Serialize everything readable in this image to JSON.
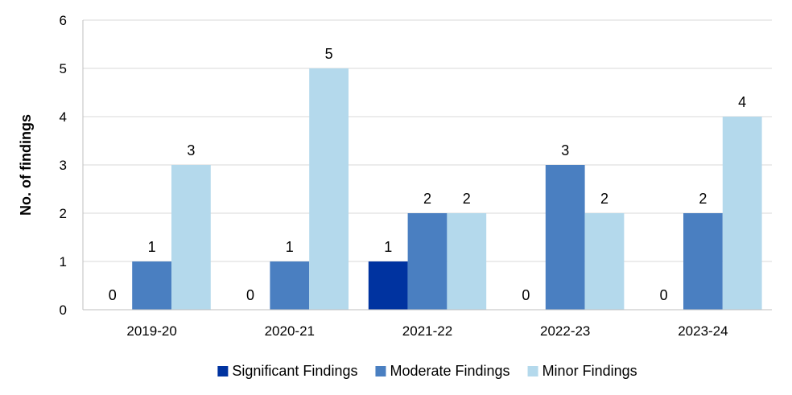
{
  "chart_data": {
    "type": "bar",
    "title": "",
    "xlabel": "",
    "ylabel": "No. of findings",
    "ylim": [
      0,
      6
    ],
    "yticks": [
      0,
      1,
      2,
      3,
      4,
      5,
      6
    ],
    "grid": true,
    "legend_position": "bottom",
    "categories": [
      "2019-20",
      "2020-21",
      "2021-22",
      "2022-23",
      "2023-24"
    ],
    "series": [
      {
        "name": "Significant Findings",
        "color": "#0033A0",
        "values": [
          0,
          0,
          1,
          0,
          0
        ]
      },
      {
        "name": "Moderate Findings",
        "color": "#4A7FC1",
        "values": [
          1,
          1,
          2,
          3,
          2
        ]
      },
      {
        "name": "Minor Findings",
        "color": "#B4D9EC",
        "values": [
          3,
          5,
          2,
          2,
          4
        ]
      }
    ]
  }
}
